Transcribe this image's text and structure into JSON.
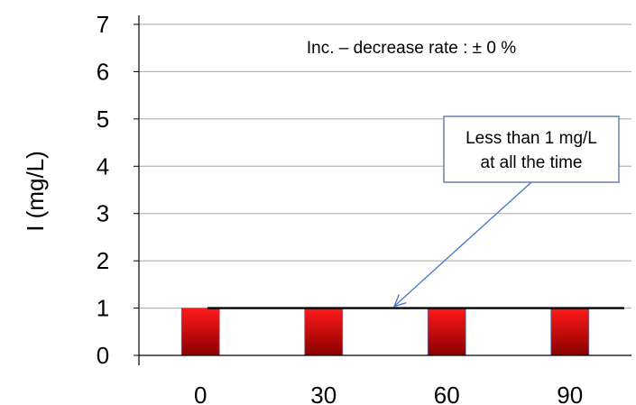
{
  "chart_data": {
    "type": "bar",
    "categories": [
      "0",
      "30",
      "60",
      "90"
    ],
    "values": [
      1,
      1,
      1,
      1
    ],
    "title": "",
    "xlabel": "",
    "ylabel": "I (mg/L)",
    "ylim": [
      0,
      7
    ],
    "yticks": [
      "0",
      "1",
      "2",
      "3",
      "4",
      "5",
      "6",
      "7"
    ],
    "grid": true,
    "bar_color": "#e8000b",
    "reference_line": {
      "value": 1,
      "color": "#000000"
    },
    "annotations": {
      "rate": "Inc. – decrease rate : ± 0 %",
      "callout_line1": "Less than 1 mg/L",
      "callout_line2": "at all the time"
    },
    "callout_border_color": "#4f6f9f",
    "arrow_color": "#4472c4"
  }
}
